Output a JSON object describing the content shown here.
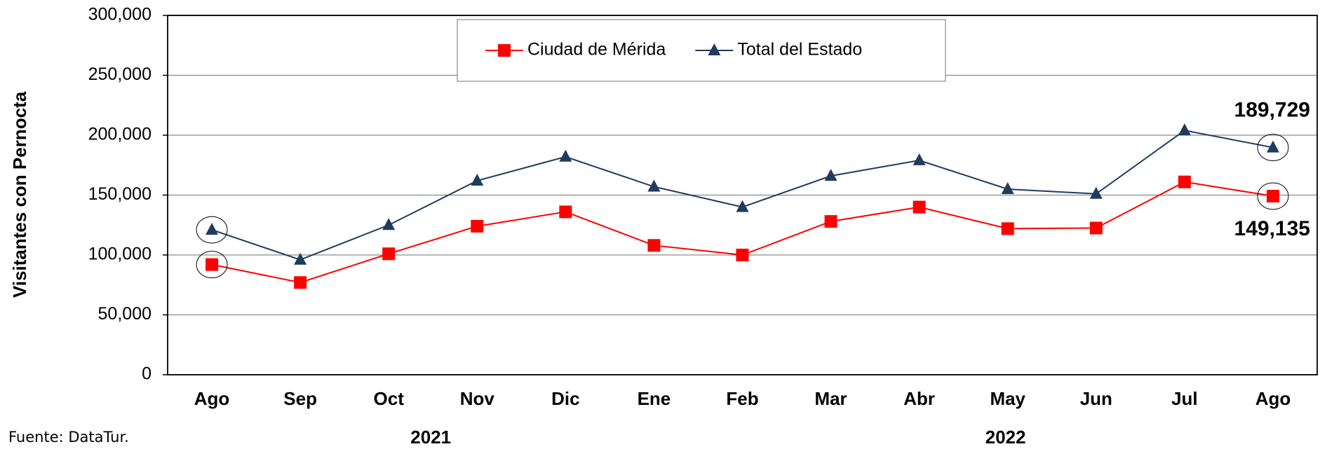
{
  "chart_data": {
    "type": "line",
    "y_label": "Visitantes con Pernocta",
    "source": "Fuente: DataTur.",
    "categories": [
      "Ago",
      "Sep",
      "Oct",
      "Nov",
      "Dic",
      "Ene",
      "Feb",
      "Mar",
      "Abr",
      "May",
      "Jun",
      "Jul",
      "Ago"
    ],
    "groups": [
      {
        "label": "2021",
        "from": 0,
        "to": 4
      },
      {
        "label": "2022",
        "from": 5,
        "to": 12
      }
    ],
    "series": [
      {
        "name": "Ciudad de Mérida",
        "color": "#ff0000",
        "marker": "square",
        "values": [
          92000,
          77000,
          101000,
          124000,
          136000,
          108000,
          100000,
          128000,
          140000,
          122000,
          122500,
          161000,
          149135
        ],
        "value_labels": [
          null,
          null,
          null,
          null,
          null,
          null,
          null,
          null,
          null,
          null,
          null,
          null,
          "149,135"
        ]
      },
      {
        "name": "Total del Estado",
        "color": "#1f3b5e",
        "marker": "triangle",
        "values": [
          121000,
          96000,
          125000,
          162000,
          182000,
          157000,
          140000,
          166000,
          179000,
          155000,
          151000,
          204000,
          189729
        ],
        "value_labels": [
          null,
          null,
          null,
          null,
          null,
          null,
          null,
          null,
          null,
          null,
          null,
          null,
          "189,729"
        ]
      }
    ],
    "ylim": [
      0,
      300000
    ],
    "yticks": [
      {
        "value": 0,
        "label": "0"
      },
      {
        "value": 50000,
        "label": "50,000"
      },
      {
        "value": 100000,
        "label": "100,000"
      },
      {
        "value": 150000,
        "label": "150,000"
      },
      {
        "value": 200000,
        "label": "200,000"
      },
      {
        "value": 250000,
        "label": "250,000"
      },
      {
        "value": 300000,
        "label": "300,000"
      }
    ],
    "grid": true
  }
}
